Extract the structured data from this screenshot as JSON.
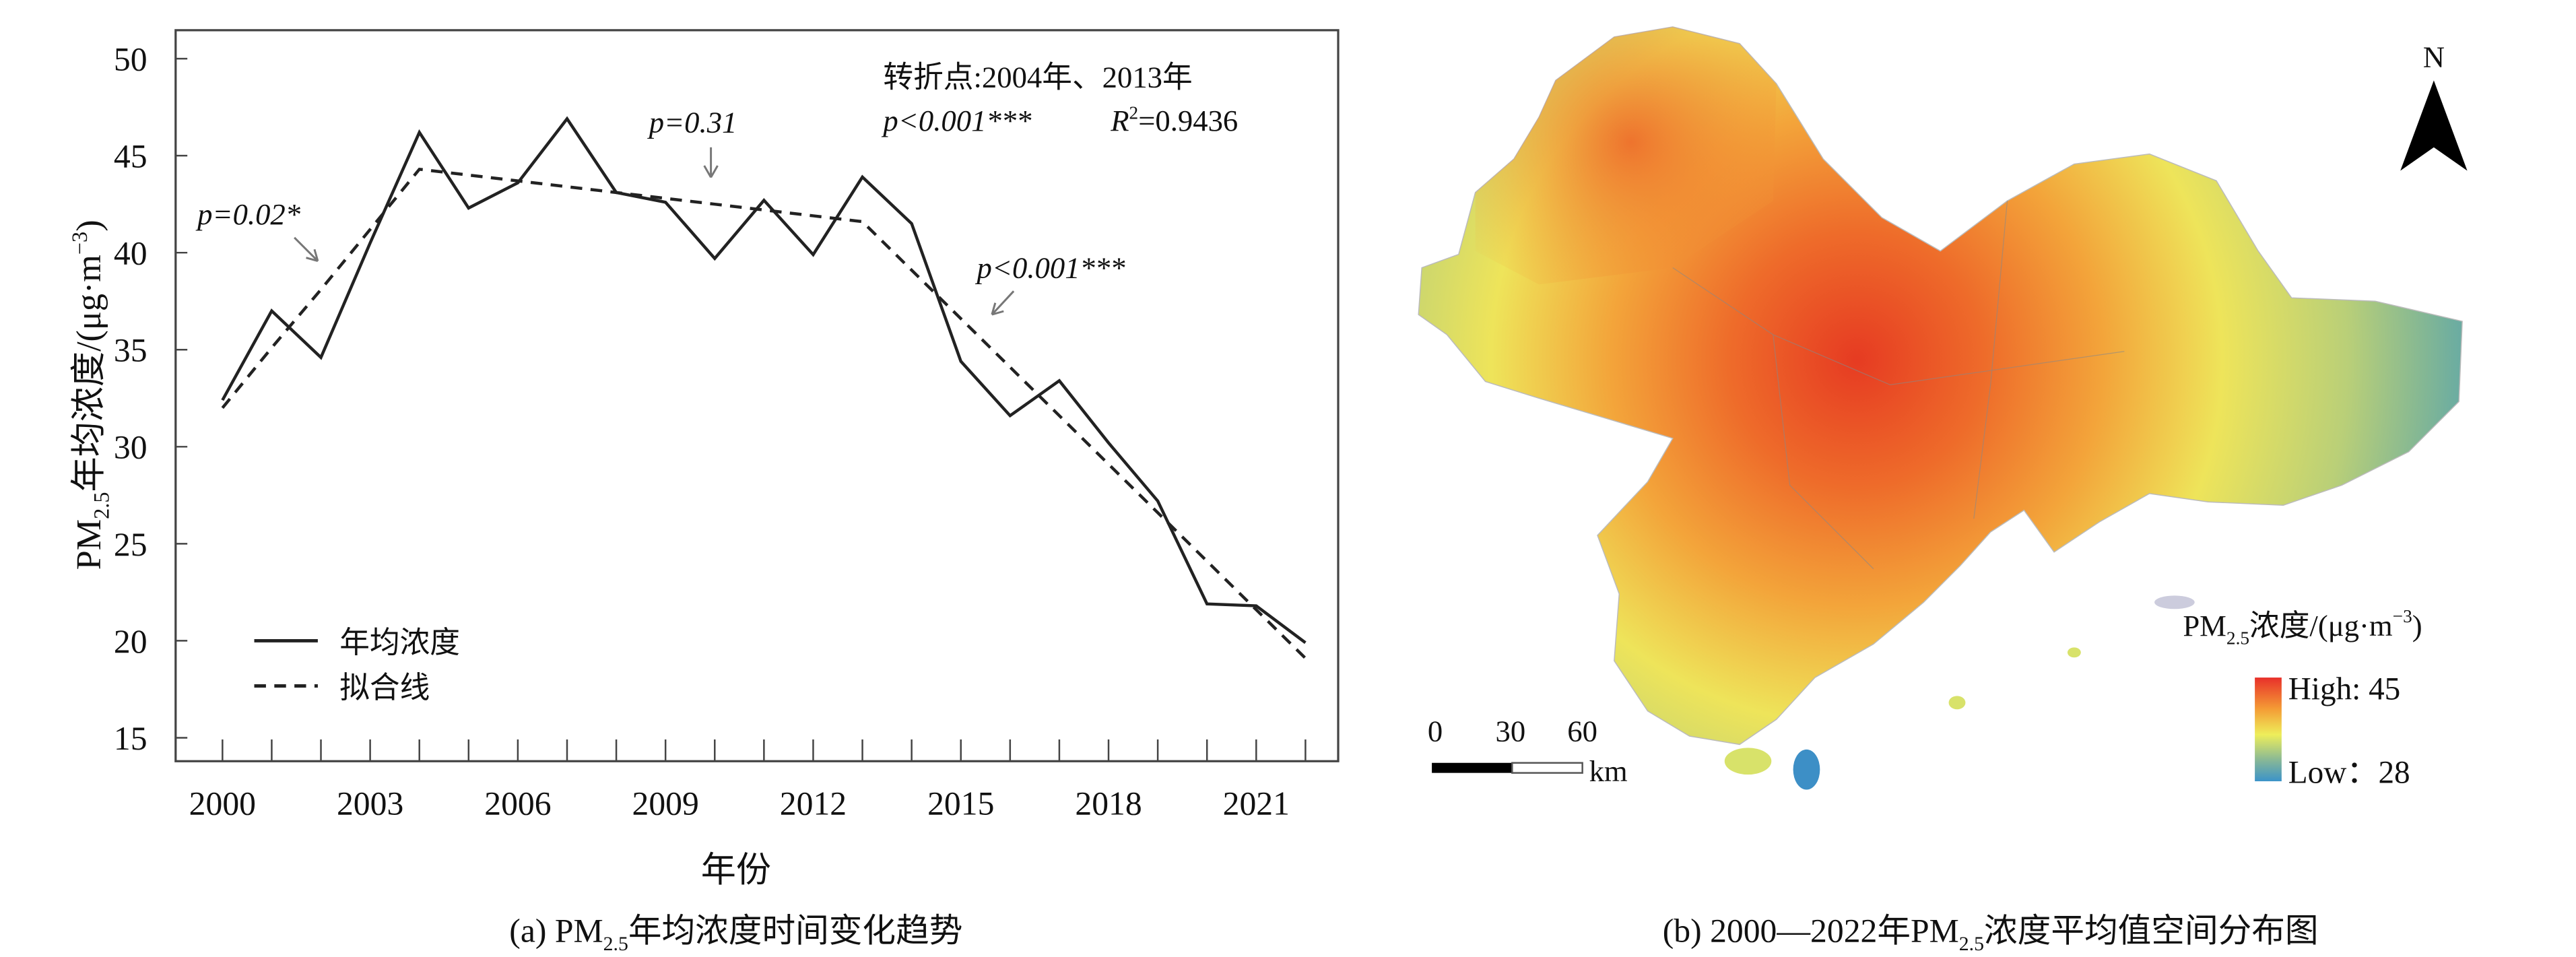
{
  "chart_data": {
    "type": "line",
    "title": "",
    "caption": {
      "prefix": "(a) PM",
      "sub": "2.5",
      "suffix": "年均浓度时间变化趋势"
    },
    "xlabel": "年份",
    "ylabel": {
      "prefix": "PM",
      "sub": "2.5",
      "mid": "年均浓度/(μg·m",
      "sup": "−3",
      "end": ")"
    },
    "ylim": [
      13.5,
      51.5
    ],
    "yticks": [
      "15",
      "20",
      "25",
      "30",
      "35",
      "40",
      "45",
      "50"
    ],
    "xticks": [
      "2000",
      "2003",
      "2006",
      "2009",
      "2012",
      "2015",
      "2018",
      "2021"
    ],
    "x": [
      2000,
      2001,
      2002,
      2003,
      2004,
      2005,
      2006,
      2007,
      2008,
      2009,
      2010,
      2011,
      2012,
      2013,
      2014,
      2015,
      2016,
      2017,
      2018,
      2019,
      2020,
      2021,
      2022
    ],
    "series": [
      {
        "name": "年均浓度",
        "style": "solid",
        "values": [
          32.4,
          37.0,
          34.6,
          40.5,
          46.2,
          42.3,
          43.6,
          46.9,
          43.1,
          42.6,
          39.7,
          42.7,
          39.9,
          43.9,
          41.5,
          34.4,
          31.6,
          33.4,
          30.2,
          27.2,
          21.9,
          21.8,
          19.9
        ]
      },
      {
        "name": "拟合线",
        "style": "dashed",
        "values": [
          32.0,
          35.1,
          38.1,
          41.2,
          44.3,
          44.0,
          43.7,
          43.4,
          43.1,
          42.8,
          42.5,
          42.2,
          41.9,
          41.6,
          39.1,
          36.6,
          34.1,
          31.6,
          29.1,
          26.6,
          24.1,
          21.6,
          19.1
        ]
      }
    ],
    "annotations": {
      "turning": "转折点:2004年、2013年",
      "overall_p": "p<0.001***",
      "r2_label": "R",
      "r2_sup": "2",
      "r2_value": "=0.9436",
      "seg1": "p=0.02*",
      "seg2": "p=0.31",
      "seg3": "p<0.001***"
    },
    "legend_position": "bottom-left"
  },
  "map": {
    "north": "N",
    "legend_title": {
      "prefix": "PM",
      "sub": "2.5",
      "mid": "浓度/(μg·m",
      "sup": "−3",
      "end": ")"
    },
    "high": "High: 45",
    "low": "Low：28",
    "scale_ticks": [
      "0",
      "30",
      "60"
    ],
    "scale_unit": "km",
    "colors": {
      "high": "#e8302a",
      "mid": "#f0ec5a",
      "low": "#3b93c9"
    },
    "caption": {
      "prefix": "(b) 2000—2022年PM",
      "sub": "2.5",
      "suffix": "浓度平均值空间分布图"
    }
  }
}
